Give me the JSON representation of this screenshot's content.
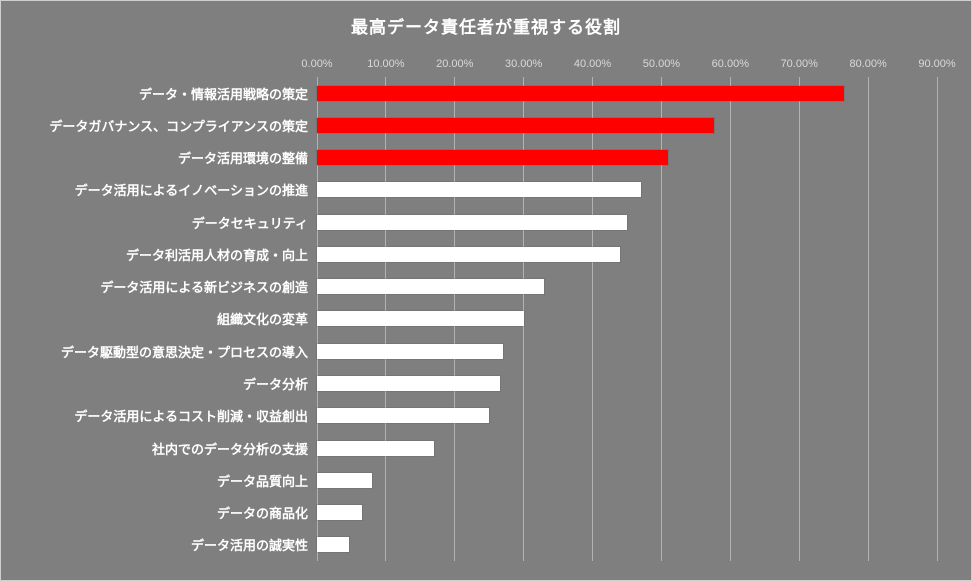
{
  "title": "最高データ責任者が重視する役割",
  "chart_data": {
    "type": "bar",
    "orientation": "horizontal",
    "title": "最高データ責任者が重視する役割",
    "xlabel": "",
    "ylabel": "",
    "axis": {
      "min": 0,
      "max": 90,
      "tick_step": 10,
      "tick_labels": [
        "0.00%",
        "10.00%",
        "20.00%",
        "30.00%",
        "40.00%",
        "50.00%",
        "60.00%",
        "70.00%",
        "80.00%",
        "90.00%"
      ]
    },
    "grid": "vertical",
    "legend": "none",
    "categories": [
      "データ・情報活用戦略の策定",
      "データガバナンス、コンプライアンスの策定",
      "データ活用環境の整備",
      "データ活用によるイノベーションの推進",
      "データセキュリティ",
      "データ利活用人材の育成・向上",
      "データ活用による新ビジネスの創造",
      "組織文化の変革",
      "データ駆動型の意思決定・プロセスの導入",
      "データ分析",
      "データ活用によるコスト削減・収益創出",
      "社内でのデータ分析の支援",
      "データ品質向上",
      "データの商品化",
      "データ活用の誠実性"
    ],
    "values": [
      76.5,
      57.6,
      51.0,
      47.0,
      45.0,
      44.0,
      33.0,
      30.0,
      27.0,
      26.5,
      25.0,
      17.0,
      8.0,
      6.5,
      4.6
    ],
    "bar_colors": [
      "#FF0000",
      "#FF0000",
      "#FF0000",
      "#FFFFFF",
      "#FFFFFF",
      "#FFFFFF",
      "#FFFFFF",
      "#FFFFFF",
      "#FFFFFF",
      "#FFFFFF",
      "#FFFFFF",
      "#FFFFFF",
      "#FFFFFF",
      "#FFFFFF",
      "#FFFFFF"
    ],
    "colors": {
      "highlight": "#FF0000",
      "default": "#FFFFFF",
      "background": "#7F7F7F",
      "gridline": "#B2B2B2",
      "label_text": "#FFFFFF",
      "tick_text": "#D9D9D9"
    }
  }
}
